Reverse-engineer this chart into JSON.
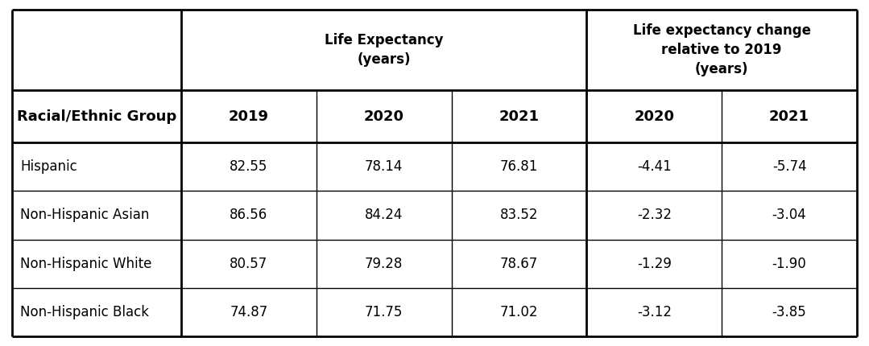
{
  "col_header_row2": [
    "Racial/Ethnic Group",
    "2019",
    "2020",
    "2021",
    "2020",
    "2021"
  ],
  "group_header_left": "Life Expectancy\n(years)",
  "group_header_right": "Life expectancy change\nrelative to 2019\n(years)",
  "rows": [
    [
      "Hispanic",
      "82.55",
      "78.14",
      "76.81",
      "-4.41",
      "-5.74"
    ],
    [
      "Non-Hispanic Asian",
      "86.56",
      "84.24",
      "83.52",
      "-2.32",
      "-3.04"
    ],
    [
      "Non-Hispanic White",
      "80.57",
      "79.28",
      "78.67",
      "-1.29",
      "-1.90"
    ],
    [
      "Non-Hispanic Black",
      "74.87",
      "71.75",
      "71.02",
      "-3.12",
      "-3.85"
    ]
  ],
  "background_color": "#ffffff",
  "text_color": "#000000",
  "font_size": 12,
  "header_font_size": 12,
  "col_header_font_size": 13
}
